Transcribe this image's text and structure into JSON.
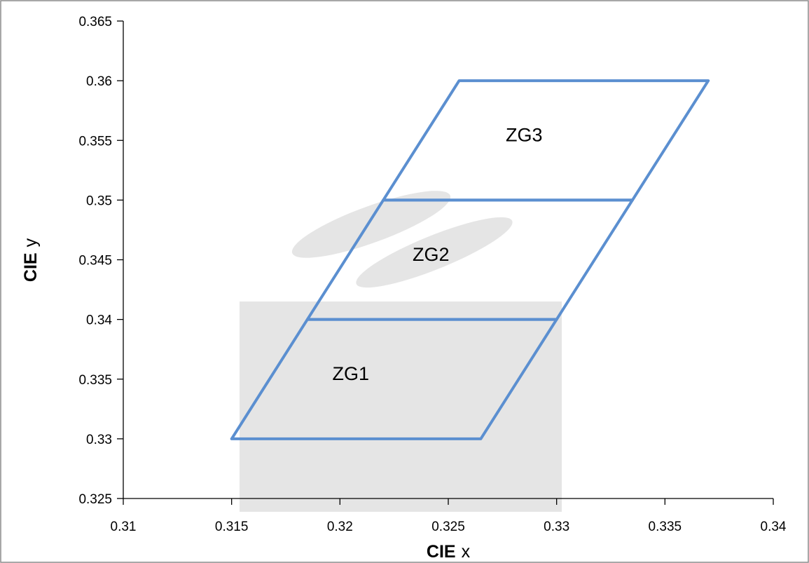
{
  "chart_data": {
    "type": "scatter",
    "xlabel_bold": "CIE",
    "xlabel_rest": "x",
    "ylabel_bold": "CIE",
    "ylabel_rest": "y",
    "xlim": [
      0.31,
      0.34
    ],
    "ylim": [
      0.325,
      0.365
    ],
    "xticks": [
      "0.31",
      "0.315",
      "0.32",
      "0.325",
      "0.33",
      "0.335",
      "0.34"
    ],
    "yticks": [
      "0.325",
      "0.33",
      "0.335",
      "0.34",
      "0.345",
      "0.35",
      "0.355",
      "0.36",
      "0.365"
    ],
    "grid": false,
    "line_color": "#5b8fd0",
    "zones": [
      {
        "name": "ZG1",
        "label_at": [
          0.3205,
          0.3355
        ],
        "points": [
          [
            0.315,
            0.33
          ],
          [
            0.3265,
            0.33
          ],
          [
            0.33,
            0.34
          ],
          [
            0.3185,
            0.34
          ]
        ]
      },
      {
        "name": "ZG2",
        "label_at": [
          0.3242,
          0.3455
        ],
        "points": [
          [
            0.3185,
            0.34
          ],
          [
            0.33,
            0.34
          ],
          [
            0.3335,
            0.35
          ],
          [
            0.322,
            0.35
          ]
        ]
      },
      {
        "name": "ZG3",
        "label_at": [
          0.3285,
          0.3555
        ],
        "points": [
          [
            0.322,
            0.35
          ],
          [
            0.3335,
            0.35
          ],
          [
            0.337,
            0.36
          ],
          [
            0.3255,
            0.36
          ]
        ]
      }
    ]
  }
}
